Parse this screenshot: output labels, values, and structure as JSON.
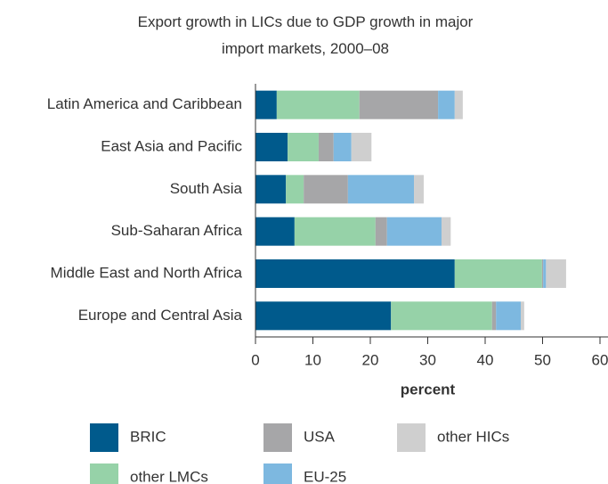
{
  "chart_data": {
    "type": "stacked-bar-horizontal",
    "title": "Export growth in LICs due to GDP growth in major import markets, 2000–08",
    "x_label": "percent",
    "categories": [
      "Latin America and Caribbean",
      "East Asia and Pacific",
      "South Asia",
      "Sub-Saharan Africa",
      "Middle East and North Africa",
      "Europe and Central Asia"
    ],
    "series": [
      {
        "name": "BRIC",
        "color": "#005a8c",
        "values": [
          3.7,
          5.6,
          5.3,
          6.8,
          34.7,
          23.6
        ]
      },
      {
        "name": "other LMCs",
        "color": "#96d2a8",
        "values": [
          14.4,
          5.4,
          3.1,
          14.1,
          15.2,
          17.6
        ]
      },
      {
        "name": "USA",
        "color": "#a6a6a8",
        "values": [
          13.7,
          2.6,
          7.7,
          2.0,
          0.2,
          0.7
        ]
      },
      {
        "name": "EU-25",
        "color": "#7db8e0",
        "values": [
          2.9,
          3.1,
          11.5,
          9.5,
          0.5,
          4.3
        ]
      },
      {
        "name": "other HICs",
        "color": "#cfcfcf",
        "values": [
          1.4,
          3.5,
          1.7,
          1.6,
          3.5,
          0.6
        ]
      }
    ],
    "xlim": [
      0,
      60
    ],
    "xticks": [
      0,
      10,
      20,
      30,
      40,
      50,
      60
    ]
  }
}
